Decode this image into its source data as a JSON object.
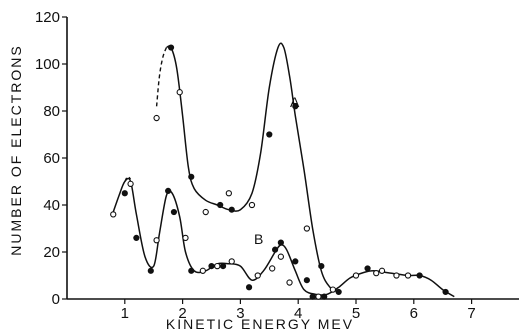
{
  "chart_data": {
    "type": "scatter",
    "title": "",
    "xlabel": "KINETIC ENERGY MEV",
    "ylabel": "NUMBER OF ELECTRONS",
    "xlim": [
      0,
      8
    ],
    "ylim": [
      0,
      120
    ],
    "x_ticks": [
      1,
      2,
      3,
      4,
      5,
      6,
      7
    ],
    "y_ticks": [
      0,
      20,
      40,
      60,
      80,
      100,
      120
    ],
    "grid": false,
    "legend": "none",
    "series": [
      {
        "name": "A",
        "curve_dashed": [
          [
            1.55,
            82
          ],
          [
            1.6,
            95
          ],
          [
            1.66,
            103
          ],
          [
            1.72,
            107
          ]
        ],
        "curve": [
          [
            1.72,
            107
          ],
          [
            1.8,
            107
          ],
          [
            1.9,
            98
          ],
          [
            2.0,
            78
          ],
          [
            2.1,
            56
          ],
          [
            2.2,
            47
          ],
          [
            2.4,
            42
          ],
          [
            2.6,
            40
          ],
          [
            2.8,
            38
          ],
          [
            3.0,
            38
          ],
          [
            3.2,
            45
          ],
          [
            3.35,
            62
          ],
          [
            3.5,
            90
          ],
          [
            3.65,
            107
          ],
          [
            3.75,
            107
          ],
          [
            3.85,
            95
          ],
          [
            3.95,
            78
          ],
          [
            4.1,
            55
          ],
          [
            4.25,
            30
          ],
          [
            4.4,
            12
          ],
          [
            4.55,
            5
          ],
          [
            4.7,
            3
          ]
        ],
        "points_filled": [
          [
            1.8,
            107
          ],
          [
            2.15,
            52
          ],
          [
            2.65,
            40
          ],
          [
            2.85,
            38
          ],
          [
            3.5,
            70
          ],
          [
            3.95,
            82
          ],
          [
            4.4,
            14
          ],
          [
            4.7,
            3
          ]
        ],
        "points_open": [
          [
            1.55,
            77
          ],
          [
            1.95,
            88
          ],
          [
            2.4,
            37
          ],
          [
            2.8,
            45
          ],
          [
            3.2,
            40
          ],
          [
            4.15,
            30
          ]
        ]
      },
      {
        "name": "B",
        "curve_dashed": [
          [
            1.0,
            50
          ],
          [
            1.05,
            52
          ],
          [
            1.1,
            51
          ]
        ],
        "curve": [
          [
            0.8,
            37
          ],
          [
            0.9,
            44
          ],
          [
            1.0,
            50
          ],
          [
            1.1,
            50
          ],
          [
            1.2,
            36
          ],
          [
            1.35,
            18
          ],
          [
            1.5,
            14
          ],
          [
            1.6,
            28
          ],
          [
            1.72,
            44
          ],
          [
            1.82,
            45
          ],
          [
            1.95,
            35
          ],
          [
            2.05,
            20
          ],
          [
            2.2,
            12
          ],
          [
            2.4,
            12
          ],
          [
            2.6,
            15
          ],
          [
            2.8,
            15
          ],
          [
            3.0,
            14
          ],
          [
            3.2,
            8
          ],
          [
            3.4,
            12
          ],
          [
            3.6,
            20
          ],
          [
            3.7,
            23
          ],
          [
            3.8,
            21
          ],
          [
            3.95,
            12
          ],
          [
            4.1,
            4
          ],
          [
            4.3,
            2
          ],
          [
            4.5,
            2
          ],
          [
            4.7,
            5
          ],
          [
            4.9,
            9
          ],
          [
            5.1,
            11
          ],
          [
            5.3,
            12
          ],
          [
            5.6,
            11
          ],
          [
            5.9,
            10
          ],
          [
            6.1,
            10
          ],
          [
            6.3,
            8
          ],
          [
            6.5,
            4
          ],
          [
            6.7,
            1
          ]
        ],
        "points_filled": [
          [
            1.0,
            45
          ],
          [
            1.2,
            26
          ],
          [
            1.45,
            12
          ],
          [
            1.75,
            46
          ],
          [
            1.85,
            37
          ],
          [
            2.15,
            12
          ],
          [
            2.5,
            14
          ],
          [
            2.7,
            14
          ],
          [
            3.15,
            5
          ],
          [
            3.6,
            21
          ],
          [
            3.7,
            24
          ],
          [
            3.95,
            16
          ],
          [
            4.15,
            8
          ],
          [
            4.25,
            1
          ],
          [
            4.45,
            1
          ],
          [
            5.2,
            13
          ],
          [
            6.1,
            10
          ],
          [
            6.55,
            3
          ]
        ],
        "points_open": [
          [
            0.8,
            36
          ],
          [
            1.1,
            49
          ],
          [
            1.55,
            25
          ],
          [
            2.05,
            26
          ],
          [
            2.35,
            12
          ],
          [
            2.6,
            14
          ],
          [
            2.85,
            16
          ],
          [
            3.3,
            10
          ],
          [
            3.55,
            13
          ],
          [
            3.7,
            18
          ],
          [
            3.85,
            7
          ],
          [
            4.35,
            1
          ],
          [
            4.6,
            4
          ],
          [
            5.0,
            10
          ],
          [
            5.35,
            11
          ],
          [
            5.45,
            12
          ],
          [
            5.7,
            10
          ],
          [
            5.9,
            10
          ]
        ]
      }
    ]
  }
}
